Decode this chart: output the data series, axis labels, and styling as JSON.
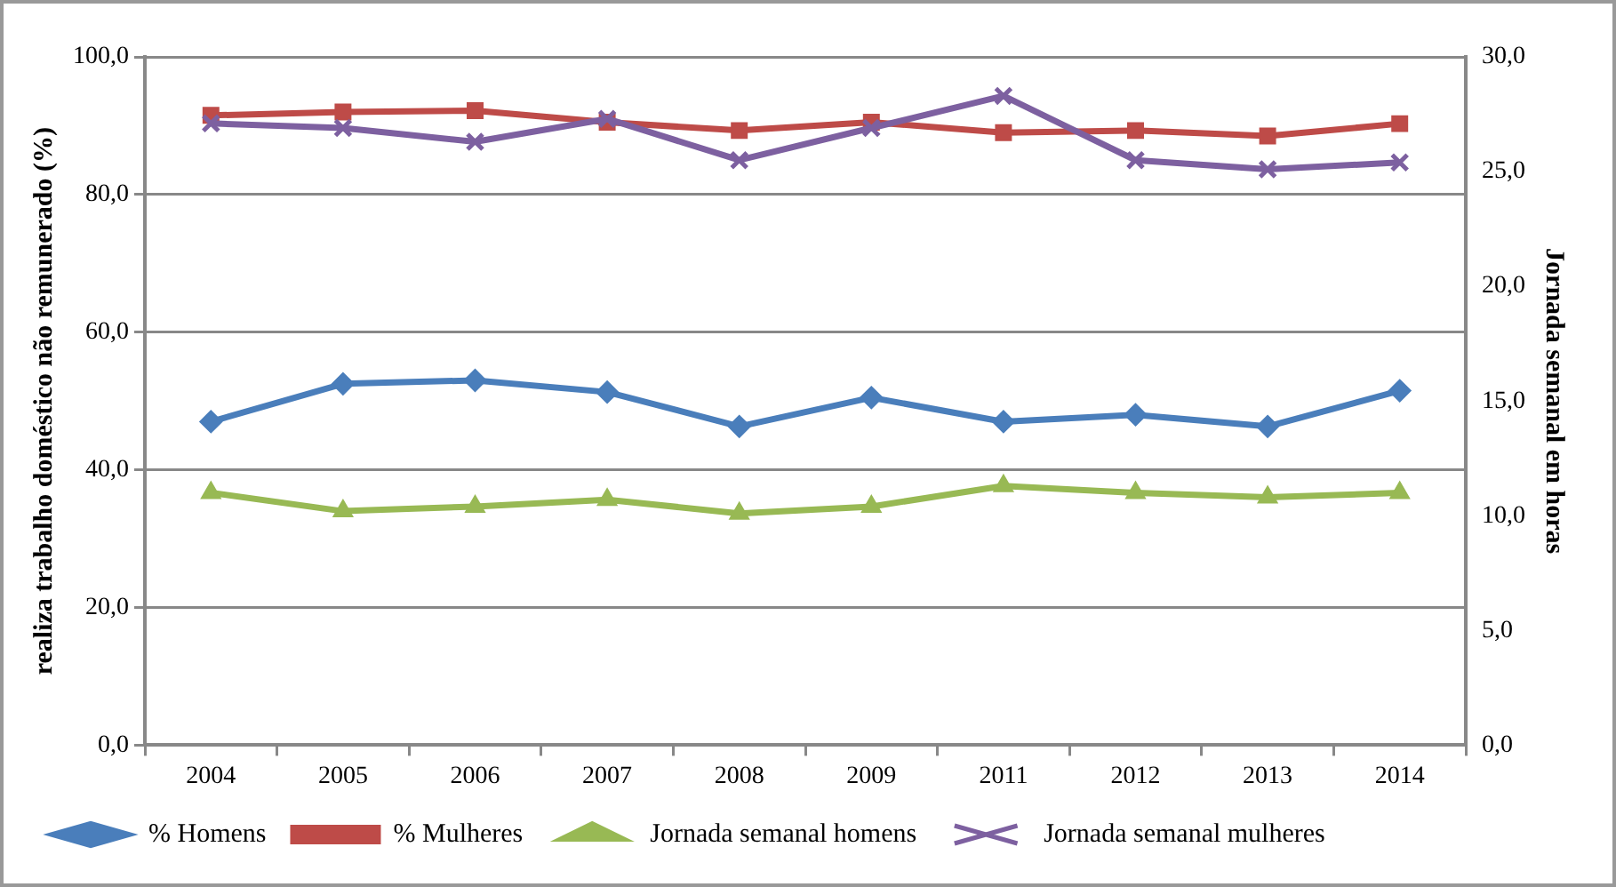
{
  "chart_data": {
    "type": "line",
    "categories": [
      "2004",
      "2005",
      "2006",
      "2007",
      "2008",
      "2009",
      "2011",
      "2012",
      "2013",
      "2014"
    ],
    "ylabel": "realiza trabalho doméstico não remunerado (%)",
    "y2label": "Jornada semanal em horas",
    "ylim": [
      0,
      100
    ],
    "yticks": [
      {
        "value": 0,
        "label": "0,0"
      },
      {
        "value": 20,
        "label": "20,0"
      },
      {
        "value": 40,
        "label": "40,0"
      },
      {
        "value": 60,
        "label": "60,0"
      },
      {
        "value": 80,
        "label": "80,0"
      },
      {
        "value": 100,
        "label": "100,0"
      }
    ],
    "y2lim": [
      0,
      30
    ],
    "y2ticks": [
      {
        "value": 0,
        "label": "0,0"
      },
      {
        "value": 5,
        "label": "5,0"
      },
      {
        "value": 10,
        "label": "10,0"
      },
      {
        "value": 15,
        "label": "15,0"
      },
      {
        "value": 20,
        "label": "20,0"
      },
      {
        "value": 25,
        "label": "25,0"
      },
      {
        "value": 30,
        "label": "30,0"
      }
    ],
    "grid": "y",
    "legend": "bottom",
    "line_style": "solid",
    "series": [
      {
        "name": "% Homens",
        "color": "#4a7ebb",
        "marker": "diamond",
        "values": [
          47,
          52.5,
          53,
          51.3,
          46.3,
          50.5,
          47,
          48,
          46.3,
          51.5
        ]
      },
      {
        "name": "% Mulheres",
        "color": "#be4b48",
        "marker": "square",
        "values": [
          91.5,
          92,
          92.2,
          90.5,
          89.3,
          90.5,
          89,
          89.3,
          88.5,
          90.3
        ]
      },
      {
        "name": "Jornada semanal homens",
        "color": "#98b954",
        "marker": "triangle",
        "axis": "y2",
        "values": [
          11.0,
          10.2,
          10.4,
          10.7,
          10.1,
          10.4,
          11.3,
          11.0,
          10.8,
          11.0
        ]
      },
      {
        "name": "Jornada semanal mulheres",
        "color": "#7d60a0",
        "marker": "cross",
        "axis": "y2",
        "values": [
          27.1,
          26.9,
          26.3,
          27.3,
          25.5,
          26.9,
          28.3,
          25.5,
          25.1,
          25.4
        ]
      }
    ]
  }
}
